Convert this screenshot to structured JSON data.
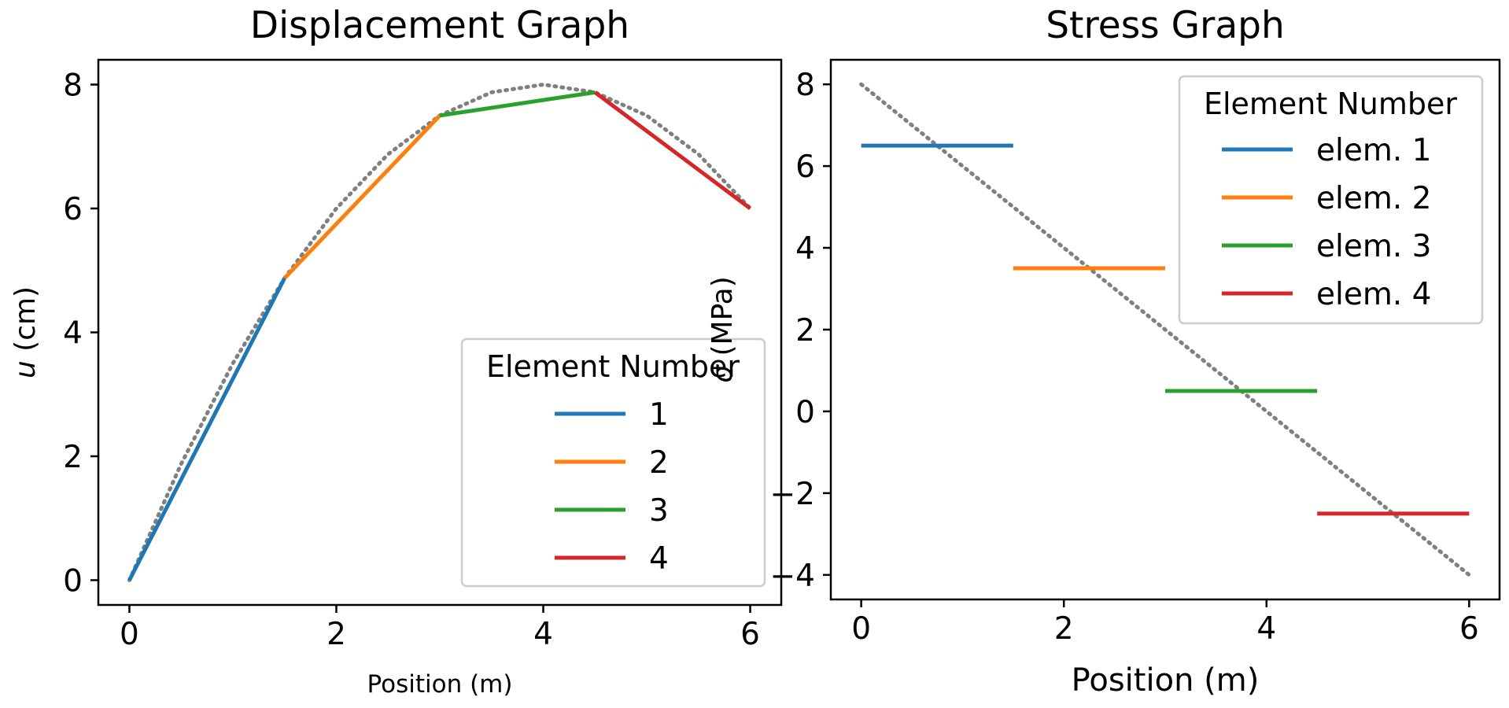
{
  "chart_data": [
    {
      "type": "line",
      "title": "Displacement Graph",
      "xlabel": "Position (m)",
      "ylabel_var": "u",
      "ylabel_unit": " (cm)",
      "xlim": [
        -0.3,
        6.3
      ],
      "ylim": [
        -0.4,
        8.4
      ],
      "xticks": [
        0,
        2,
        4,
        6
      ],
      "yticks": [
        0,
        2,
        4,
        6,
        8
      ],
      "grid": false,
      "legend": {
        "title": "Element Number",
        "placement": "lower right"
      },
      "reference": {
        "style": "dotted",
        "color": "#808080",
        "x": [
          0,
          0.5,
          1,
          1.5,
          2,
          2.5,
          3,
          3.5,
          4,
          4.5,
          5,
          5.5,
          6
        ],
        "y": [
          0,
          1.875,
          3.5,
          4.875,
          6.0,
          6.875,
          7.5,
          7.875,
          8.0,
          7.875,
          7.5,
          6.875,
          6.0
        ]
      },
      "series": [
        {
          "name": "1",
          "color": "#1f77b4",
          "x": [
            0,
            1.5
          ],
          "y": [
            0,
            4.875
          ]
        },
        {
          "name": "2",
          "color": "#ff7f0e",
          "x": [
            1.5,
            3
          ],
          "y": [
            4.875,
            7.5
          ]
        },
        {
          "name": "3",
          "color": "#2ca02c",
          "x": [
            3,
            4.5
          ],
          "y": [
            7.5,
            7.875
          ]
        },
        {
          "name": "4",
          "color": "#d62728",
          "x": [
            4.5,
            6
          ],
          "y": [
            7.875,
            6.0
          ]
        }
      ]
    },
    {
      "type": "line",
      "title": "Stress Graph",
      "xlabel": "Position (m)",
      "ylabel_var": "σ",
      "ylabel_unit": " (MPa)",
      "xlim": [
        -0.3,
        6.3
      ],
      "ylim": [
        -4.6,
        8.6
      ],
      "xticks": [
        0,
        2,
        4,
        6
      ],
      "yticks": [
        -4,
        -2,
        0,
        2,
        4,
        6,
        8
      ],
      "grid": false,
      "legend": {
        "title": "Element Number",
        "placement": "upper right"
      },
      "reference": {
        "style": "dotted",
        "color": "#808080",
        "x": [
          0,
          6
        ],
        "y": [
          8,
          -4
        ]
      },
      "series": [
        {
          "name": "elem. 1",
          "color": "#1f77b4",
          "x": [
            0,
            1.5
          ],
          "y": [
            6.5,
            6.5
          ]
        },
        {
          "name": "elem. 2",
          "color": "#ff7f0e",
          "x": [
            1.5,
            3
          ],
          "y": [
            3.5,
            3.5
          ]
        },
        {
          "name": "elem. 3",
          "color": "#2ca02c",
          "x": [
            3,
            4.5
          ],
          "y": [
            0.5,
            0.5
          ]
        },
        {
          "name": "elem. 4",
          "color": "#d62728",
          "x": [
            4.5,
            6
          ],
          "y": [
            -2.5,
            -2.5
          ]
        }
      ]
    }
  ]
}
